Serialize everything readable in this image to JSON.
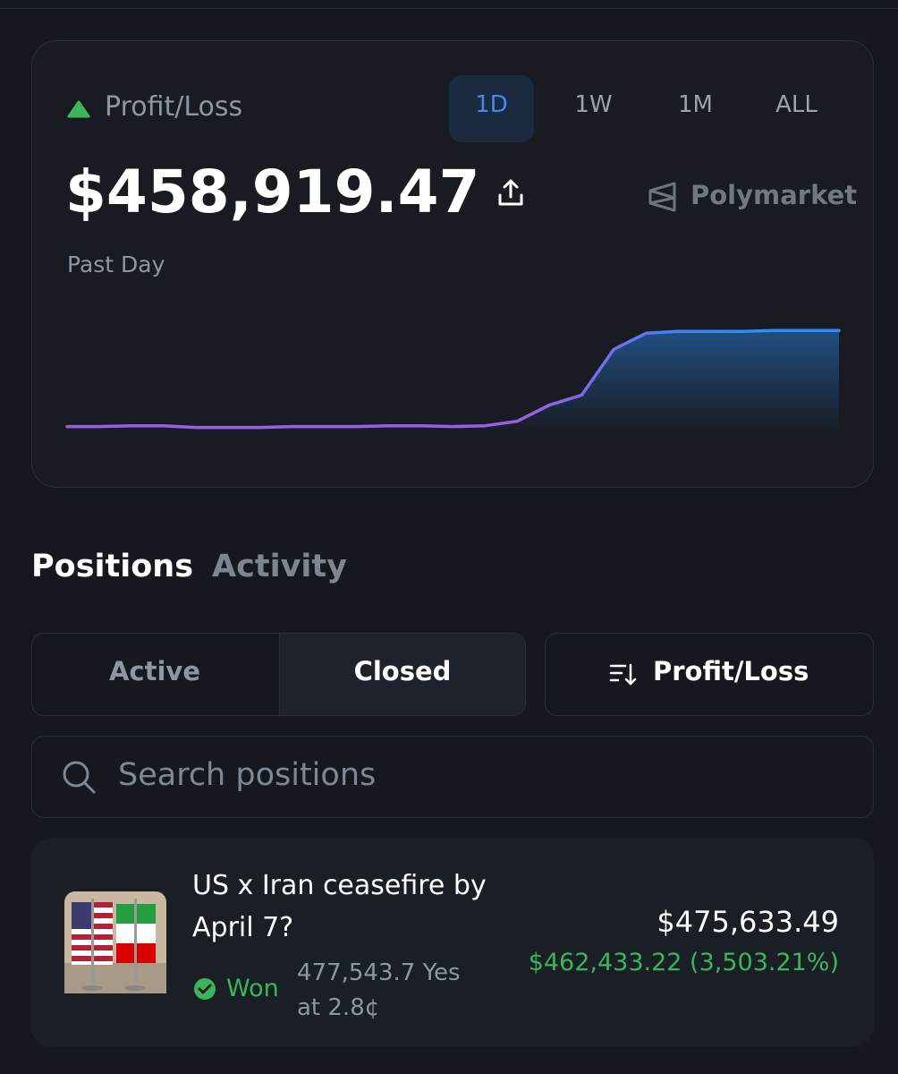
{
  "header": {
    "label": "Profit/Loss",
    "ranges": [
      "1D",
      "1W",
      "1M",
      "ALL"
    ],
    "amount": "$458,919.47",
    "brand": "Polymarket",
    "period": "Past Day"
  },
  "chart_data": {
    "type": "area",
    "values": [
      0,
      0,
      4000,
      4000,
      -4000,
      -4000,
      -4000,
      0,
      0,
      0,
      4000,
      4000,
      0,
      4000,
      26000,
      103000,
      150000,
      369000,
      446000,
      455000,
      455000,
      455000,
      459000,
      459000,
      459000
    ],
    "ylim": [
      -40000,
      460000
    ],
    "line_colors": [
      "#9b5de5",
      "#2b8df5"
    ]
  },
  "tabs": [
    "Positions",
    "Activity"
  ],
  "filters": [
    "Active",
    "Closed"
  ],
  "sort": "Profit/Loss",
  "search_placeholder": "Search positions",
  "positions": [
    {
      "title": "US x Iran ceasefire by April 7?",
      "status": "Won",
      "shares": "477,543.7 Yes at 2.8¢",
      "value": "$475,633.49",
      "pnl": "$462,433.22 (3,503.21%)"
    }
  ]
}
